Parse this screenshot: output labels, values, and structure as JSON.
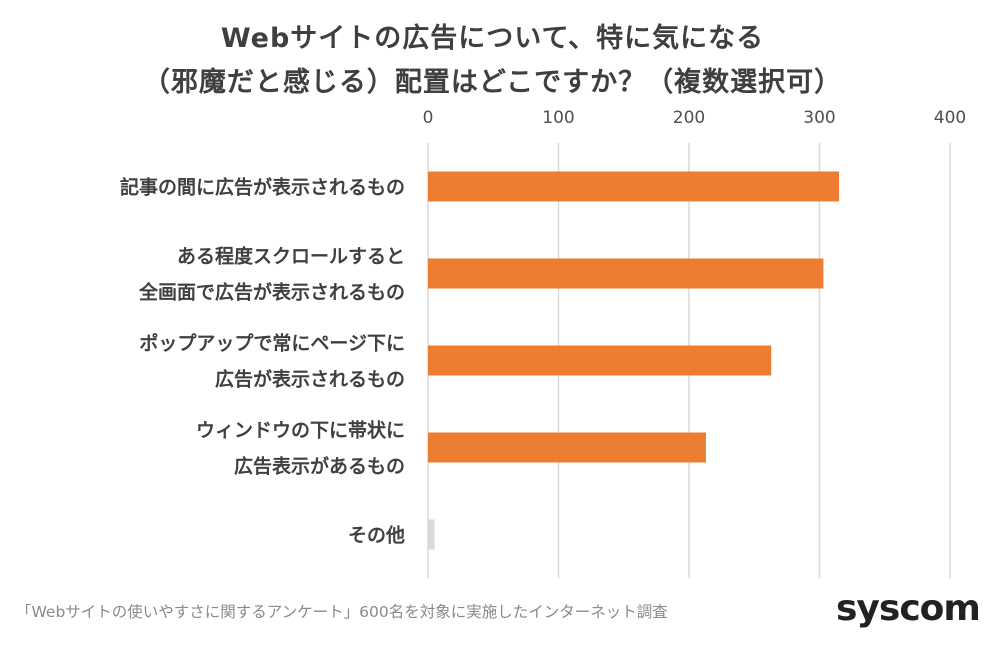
{
  "chart_data": {
    "type": "bar",
    "orientation": "horizontal",
    "title_lines": [
      "Webサイトの広告について、特に気になる",
      "（邪魔だと感じる）配置はどこですか？（複数選択可）"
    ],
    "categories": [
      [
        "記事の間に広告が表示されるもの"
      ],
      [
        "ある程度スクロールすると",
        "全画面で広告が表示されるもの"
      ],
      [
        "ポップアップで常にページ下に",
        "広告が表示されるもの"
      ],
      [
        "ウィンドウの下に帯状に",
        "広告表示があるもの"
      ],
      [
        "その他"
      ]
    ],
    "values": [
      315,
      303,
      263,
      213,
      5
    ],
    "xlim": [
      0,
      400
    ],
    "x_ticks": [
      "0",
      "100",
      "200",
      "300",
      "400"
    ],
    "axis_position": "top",
    "grid": true,
    "colors": {
      "bar": "#ED7D31",
      "other_bar": "#D9D9D9",
      "grid": "#D9D9D9"
    }
  },
  "footer": {
    "note": "「Webサイトの使いやすさに関するアンケート」600名を対象に実施したインターネット調査"
  },
  "brand": {
    "logo_text": "syscom"
  }
}
